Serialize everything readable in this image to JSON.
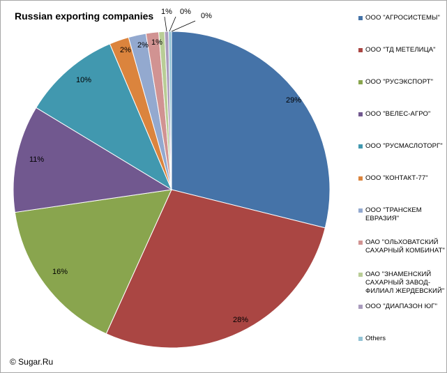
{
  "chart_data": {
    "type": "pie",
    "title": "Russian exporting companies",
    "credit": "© Sugar.Ru",
    "slices": [
      {
        "label": "ООО \"АГРОСИСТЕМЫ\"",
        "value": 29,
        "display": "29%",
        "color": "#4573a8"
      },
      {
        "label": "ООО \"ТД МЕТЕЛИЦА\"",
        "value": 28,
        "display": "28%",
        "color": "#aa4643"
      },
      {
        "label": "ООО \"РУСЭКСПОРТ\"",
        "value": 16,
        "display": "16%",
        "color": "#89a54e"
      },
      {
        "label": "ООО \"ВЕЛЕС-АГРО\"",
        "value": 11,
        "display": "11%",
        "color": "#71588f"
      },
      {
        "label": "ООО \"РУСМАСЛОТОРГ\"",
        "value": 10,
        "display": "10%",
        "color": "#4198af"
      },
      {
        "label": "ООО \"КОНТАКТ-77\"",
        "value": 2,
        "display": "2%",
        "color": "#db843d"
      },
      {
        "label": "ООО \"ТРАНСКЕМ ЕВРАЗИЯ\"",
        "value": 1.8,
        "display": "2%",
        "color": "#93a9cf"
      },
      {
        "label": "ОАО \"ОЛЬХОВАТСКИЙ САХАРНЫЙ КОМБИНАТ\"",
        "value": 1.3,
        "display": "1%",
        "color": "#d19392"
      },
      {
        "label": "ОАО \"ЗНАМЕНСКИЙ САХАРНЫЙ ЗАВОД-ФИЛИАЛ ЖЕРДЕВСКИЙ\"",
        "value": 0.6,
        "display": "1%",
        "color": "#b9cd96"
      },
      {
        "label": "ООО \"ДИАПАЗОН ЮГ\"",
        "value": 0.4,
        "display": "0%",
        "color": "#a99bbd"
      },
      {
        "label": "Others",
        "value": 0.3,
        "display": "0%",
        "color": "#92c3d5"
      }
    ]
  },
  "legend": {
    "items": [
      {
        "lines": [
          "ООО \"АГРОСИСТЕМЫ\""
        ]
      },
      {
        "lines": [
          "ООО \"ТД МЕТЕЛИЦА\""
        ]
      },
      {
        "lines": [
          "ООО \"РУСЭКСПОРТ\""
        ]
      },
      {
        "lines": [
          "ООО \"ВЕЛЕС-АГРО\""
        ]
      },
      {
        "lines": [
          "ООО \"РУСМАСЛОТОРГ\""
        ]
      },
      {
        "lines": [
          "ООО \"КОНТАКТ-77\""
        ]
      },
      {
        "lines": [
          "ООО \"ТРАНСКЕМ",
          "ЕВРАЗИЯ\""
        ]
      },
      {
        "lines": [
          "ОАО \"ОЛЬХОВАТСКИЙ",
          "САХАРНЫЙ КОМБИНАТ\""
        ]
      },
      {
        "lines": [
          "ОАО \"ЗНАМЕНСКИЙ",
          "САХАРНЫЙ ЗАВОД-",
          "ФИЛИАЛ ЖЕРДЕВСКИЙ\""
        ]
      },
      {
        "lines": [
          "ООО \"ДИАПАЗОН ЮГ\""
        ]
      },
      {
        "lines": [
          "Others"
        ]
      }
    ]
  }
}
